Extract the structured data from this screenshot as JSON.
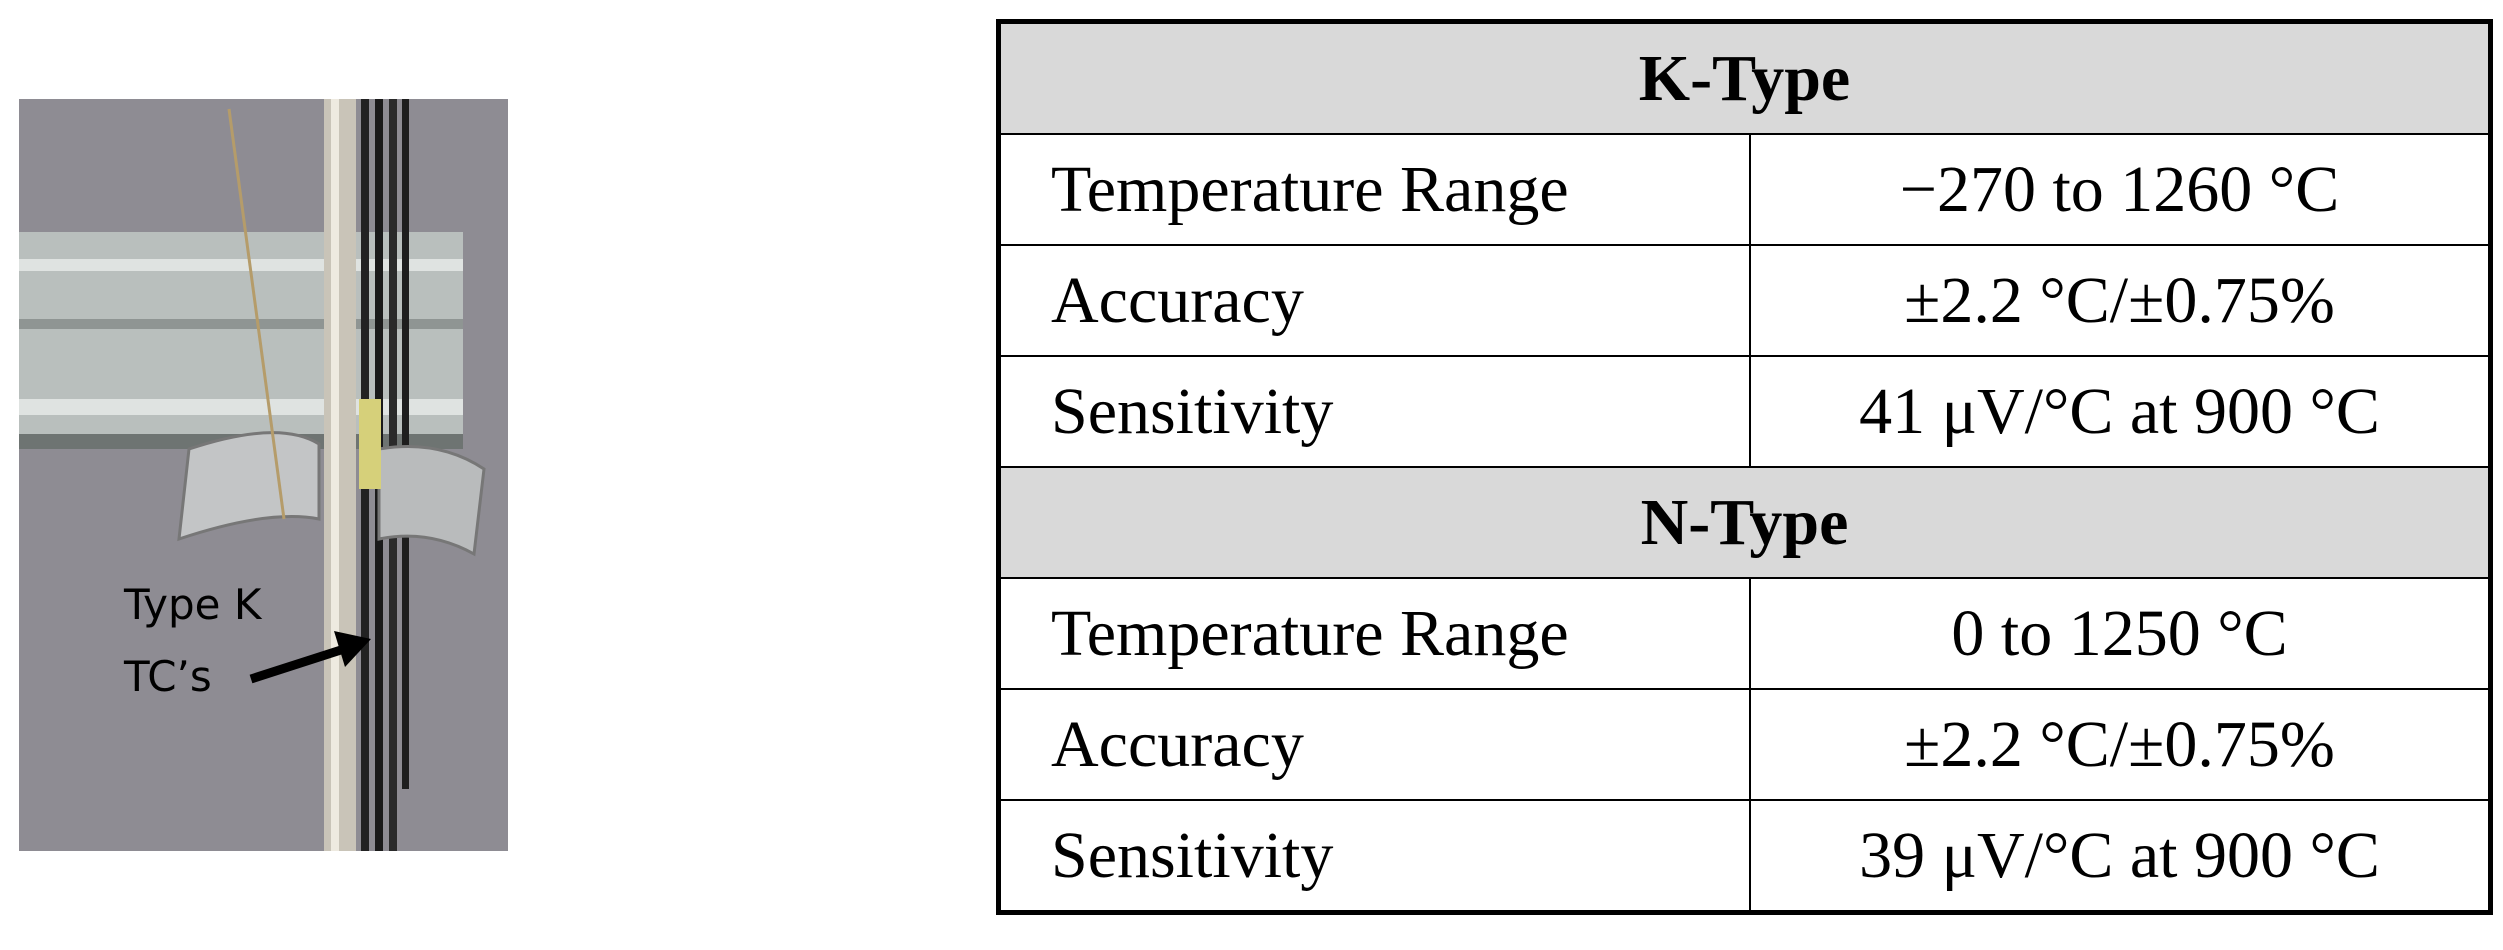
{
  "photo": {
    "label": [
      "Type K",
      "TC’s"
    ]
  },
  "table": {
    "sections": [
      {
        "title": "K-Type",
        "rows": [
          [
            "Temperature Range",
            "−270 to 1260 °C"
          ],
          [
            "Accuracy",
            "±2.2 °C/±0.75%"
          ],
          [
            "Sensitivity",
            "41 μV/°C at 900 °C"
          ]
        ]
      },
      {
        "title": "N-Type",
        "rows": [
          [
            "Temperature Range",
            "0 to 1250 °C"
          ],
          [
            "Accuracy",
            "±2.2 °C/±0.75%"
          ],
          [
            "Sensitivity",
            "39 μV/°C at 900 °C"
          ]
        ]
      }
    ]
  }
}
